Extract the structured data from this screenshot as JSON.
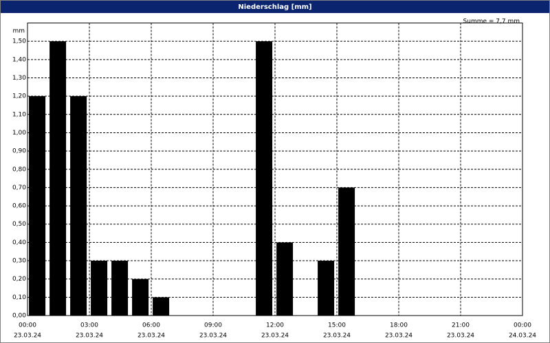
{
  "window_title": "Niederschlag [mm]",
  "chart_data": {
    "type": "bar",
    "annotation": "Summe = 7,7 mm",
    "y_label": "mm",
    "x": [
      0,
      1,
      2,
      3,
      4,
      5,
      6,
      11,
      12,
      14,
      15
    ],
    "values": [
      1.2,
      1.5,
      1.2,
      0.3,
      0.3,
      0.2,
      0.1,
      1.5,
      0.4,
      0.3,
      0.7
    ],
    "color": "#000000",
    "xlim": [
      0,
      24
    ],
    "xticks": [
      {
        "value": 0,
        "label": "00:00",
        "date": "23.03.24"
      },
      {
        "value": 3,
        "label": "03:00",
        "date": "23.03.24"
      },
      {
        "value": 6,
        "label": "06:00",
        "date": "23.03.24"
      },
      {
        "value": 9,
        "label": "09:00",
        "date": "23.03.24"
      },
      {
        "value": 12,
        "label": "12:00",
        "date": "23.03.24"
      },
      {
        "value": 15,
        "label": "15:00",
        "date": "23.03.24"
      },
      {
        "value": 18,
        "label": "18:00",
        "date": "23.03.24"
      },
      {
        "value": 21,
        "label": "21:00",
        "date": "23.03.24"
      },
      {
        "value": 24,
        "label": "00:00",
        "date": "24.03.24"
      }
    ],
    "ylim": [
      0,
      1.6
    ],
    "yticks": [
      {
        "value": 0,
        "label": "0,00"
      },
      {
        "value": 0.1,
        "label": "0,10"
      },
      {
        "value": 0.2,
        "label": "0,20"
      },
      {
        "value": 0.3,
        "label": "0,30"
      },
      {
        "value": 0.4,
        "label": "0,40"
      },
      {
        "value": 0.5,
        "label": "0,50"
      },
      {
        "value": 0.6,
        "label": "0,60"
      },
      {
        "value": 0.7,
        "label": "0,70"
      },
      {
        "value": 0.8,
        "label": "0,80"
      },
      {
        "value": 0.9,
        "label": "0,90"
      },
      {
        "value": 1.0,
        "label": "1,00"
      },
      {
        "value": 1.1,
        "label": "1,10"
      },
      {
        "value": 1.2,
        "label": "1,20"
      },
      {
        "value": 1.3,
        "label": "1,30"
      },
      {
        "value": 1.4,
        "label": "1,40"
      },
      {
        "value": 1.5,
        "label": "1,50"
      }
    ],
    "grid": true
  }
}
